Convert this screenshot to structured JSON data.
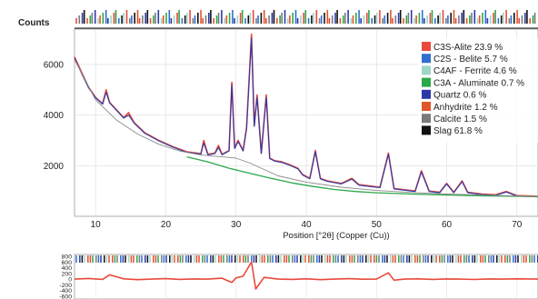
{
  "chart_data": [
    {
      "type": "line",
      "title": "",
      "ylabel": "Counts",
      "xlabel": "Position [°2θ] (Copper (Cu))",
      "xlim": [
        7,
        73
      ],
      "ylim": [
        0,
        7400
      ],
      "x_ticks": [
        10,
        20,
        30,
        40,
        50,
        60,
        70
      ],
      "y_ticks": [
        2000,
        4000,
        6000
      ],
      "grid": true,
      "legend_position": "top-right",
      "legend": [
        {
          "label": "C3S-Alite 23.9 %",
          "color": "#e8493b"
        },
        {
          "label": "C2S - Belite 5.7 %",
          "color": "#2f6fd0"
        },
        {
          "label": "C4AF - Ferrite 4.6 %",
          "color": "#9fd6c8"
        },
        {
          "label": "C3A - Aluminate 0.7 %",
          "color": "#2aa84a"
        },
        {
          "label": "Quartz 0.6 %",
          "color": "#2b3aa8"
        },
        {
          "label": "Anhydrite 1.2 %",
          "color": "#e0552a"
        },
        {
          "label": "Calcite 1.5 %",
          "color": "#7a7a7a"
        },
        {
          "label": "Slag 61.8 %",
          "color": "#111111"
        }
      ],
      "series": [
        {
          "color": "#e8493b",
          "x": [
            7,
            8,
            9,
            10,
            11,
            11.5,
            12,
            13,
            14,
            14.7,
            15.5,
            17,
            19,
            21,
            23,
            25,
            25.4,
            26,
            27,
            27.5,
            28,
            29,
            29.4,
            29.8,
            30.3,
            31,
            31.5,
            32.2,
            32.6,
            33,
            33.6,
            34.3,
            34.8,
            35.5,
            36.5,
            37.5,
            38.8,
            39.5,
            40.5,
            41.3,
            42,
            43,
            44,
            45,
            46.5,
            47.5,
            49,
            50.5,
            51.7,
            52.5,
            54,
            55.5,
            56.4,
            57.5,
            59,
            60,
            61,
            62.2,
            63,
            65,
            67,
            68.5,
            70,
            72,
            73
          ],
          "y": [
            6300,
            5700,
            5100,
            4700,
            4450,
            5000,
            4500,
            4200,
            3900,
            4100,
            3700,
            3300,
            3000,
            2750,
            2550,
            2480,
            3000,
            2450,
            2500,
            2800,
            2450,
            2600,
            5300,
            2700,
            3000,
            2600,
            3500,
            7200,
            3600,
            4800,
            2500,
            4800,
            2300,
            2200,
            2150,
            2050,
            1900,
            1650,
            1500,
            2600,
            1500,
            1400,
            1350,
            1300,
            1500,
            1250,
            1200,
            1150,
            2500,
            1100,
            1050,
            1000,
            1800,
            1000,
            950,
            1300,
            950,
            1400,
            950,
            880,
            850,
            980,
            820,
            800,
            790
          ]
        },
        {
          "color": "#2b3aa8",
          "x": [
            7,
            8,
            9,
            10,
            11,
            11.5,
            12,
            13,
            14,
            14.7,
            15.5,
            17,
            19,
            21,
            23,
            25,
            25.4,
            26,
            27,
            27.5,
            28,
            29,
            29.4,
            29.8,
            30.3,
            31,
            31.5,
            32.2,
            32.6,
            33,
            33.6,
            34.3,
            34.8,
            35.5,
            36.5,
            37.5,
            38.8,
            39.5,
            40.5,
            41.3,
            42,
            43,
            44,
            45,
            46.5,
            47.5,
            49,
            50.5,
            51.7,
            52.5,
            54,
            55.5,
            56.4,
            57.5,
            59,
            60,
            61,
            62.2,
            63,
            65,
            67,
            68.5,
            70,
            72,
            73
          ],
          "y": [
            6250,
            5650,
            5080,
            4680,
            4430,
            4900,
            4480,
            4180,
            3880,
            4000,
            3680,
            3280,
            2980,
            2730,
            2530,
            2460,
            2900,
            2430,
            2480,
            2720,
            2430,
            2580,
            5200,
            2680,
            2950,
            2580,
            3450,
            7050,
            3550,
            4700,
            2480,
            4700,
            2280,
            2180,
            2130,
            2030,
            1880,
            1630,
            1480,
            2550,
            1480,
            1380,
            1330,
            1280,
            1470,
            1230,
            1180,
            1130,
            2450,
            1080,
            1030,
            980,
            1750,
            980,
            930,
            1280,
            930,
            1370,
            930,
            860,
            830,
            960,
            800,
            780,
            770
          ]
        },
        {
          "color": "#2aa84a",
          "x": [
            23,
            26,
            29,
            32,
            35,
            38,
            41,
            44,
            47,
            50,
            55,
            60,
            65,
            70,
            73
          ],
          "y": [
            2350,
            2150,
            1900,
            1700,
            1500,
            1320,
            1180,
            1060,
            980,
            930,
            880,
            840,
            810,
            790,
            780
          ]
        },
        {
          "color": "#8a8a8a",
          "x": [
            7,
            10,
            13,
            16,
            19,
            22,
            25,
            28,
            30,
            32,
            34,
            36,
            40,
            45,
            50,
            55,
            60,
            65,
            70,
            73
          ],
          "y": [
            6200,
            4600,
            3800,
            3250,
            2850,
            2580,
            2420,
            2350,
            2300,
            2100,
            1850,
            1600,
            1350,
            1150,
            1020,
            940,
            880,
            840,
            800,
            785
          ]
        }
      ]
    },
    {
      "type": "line",
      "title": "",
      "ylabel": "",
      "xlabel": "",
      "xlim": [
        7,
        73
      ],
      "ylim": [
        -700,
        800
      ],
      "y_ticks": [
        800,
        600,
        400,
        200,
        0,
        -200,
        -400,
        -600
      ],
      "y_tick_labels": [
        "800",
        "600",
        "400",
        "200",
        "0",
        "-200",
        "-400",
        "-600"
      ],
      "grid": true,
      "series": [
        {
          "color": "#e8493b",
          "x": [
            7,
            9,
            11,
            12,
            14,
            16,
            18,
            20,
            22,
            24,
            26,
            28,
            29.4,
            30,
            31,
            32.2,
            32.8,
            34,
            36,
            38,
            40,
            42,
            44,
            46,
            48,
            50,
            51.7,
            52.5,
            54,
            56,
            58,
            60,
            62,
            64,
            66,
            68,
            70,
            73
          ],
          "y": [
            0,
            20,
            -10,
            150,
            10,
            -20,
            0,
            15,
            -10,
            5,
            0,
            30,
            -120,
            40,
            100,
            600,
            -350,
            60,
            0,
            -10,
            10,
            -20,
            0,
            15,
            -5,
            0,
            220,
            -40,
            0,
            10,
            -10,
            5,
            0,
            -15,
            5,
            0,
            10,
            0
          ]
        }
      ]
    }
  ]
}
